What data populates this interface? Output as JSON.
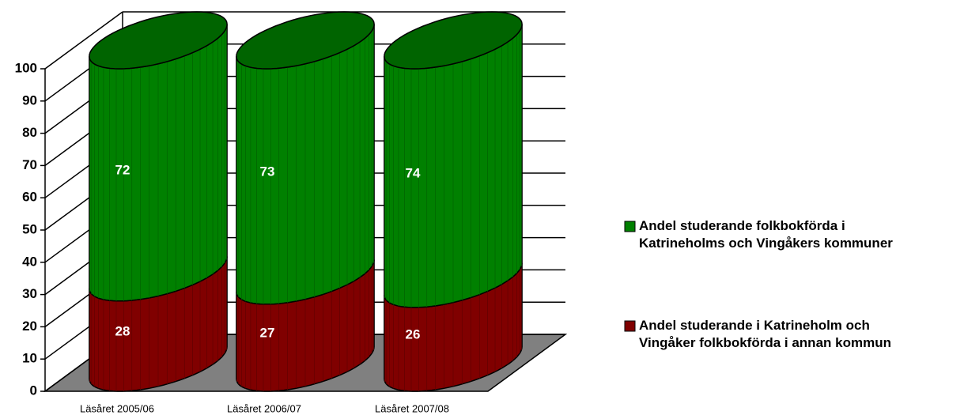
{
  "chart_data": {
    "type": "bar",
    "stacked": true,
    "categories": [
      "Läsåret 2005/06",
      "Läsåret 2006/07",
      "Läsåret 2007/08"
    ],
    "series": [
      {
        "name": "Andel studerande folkbokförda i Katrineholms och Vingåkers kommuner",
        "color": "#008000",
        "values": [
          72,
          73,
          74
        ]
      },
      {
        "name": "Andel studerande i Katrineholm och Vingåker folkbokförda i annan kommun",
        "color": "#800000",
        "values": [
          28,
          27,
          26
        ]
      }
    ],
    "ylim": [
      0,
      100
    ],
    "yticks": [
      0,
      10,
      20,
      30,
      40,
      50,
      60,
      70,
      80,
      90,
      100
    ],
    "grid": true,
    "legend": "right"
  }
}
